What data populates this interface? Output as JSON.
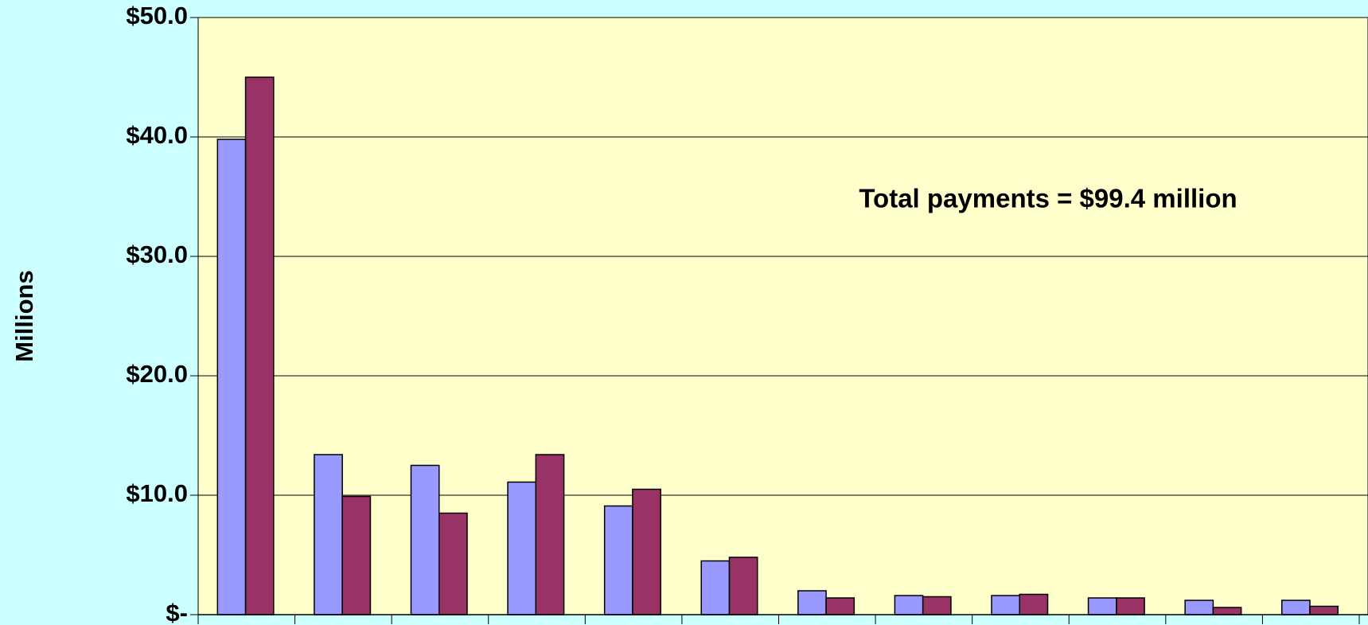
{
  "chart_data": {
    "type": "bar",
    "annotation": "Total payments = $99.4 million",
    "ylabel": "Millions",
    "categories": [
      null,
      null,
      null,
      null,
      null,
      null,
      null,
      null,
      null,
      null,
      null,
      null
    ],
    "series": [
      {
        "color": "#9999ff",
        "values": [
          39.8,
          13.4,
          12.5,
          11.1,
          9.1,
          4.5,
          2.0,
          1.6,
          1.6,
          1.4,
          1.2,
          1.2
        ]
      },
      {
        "color": "#993366",
        "values": [
          45.0,
          9.9,
          8.5,
          13.4,
          10.5,
          4.8,
          1.4,
          1.5,
          1.7,
          1.4,
          0.6,
          0.7
        ]
      }
    ],
    "ylim": [
      0,
      50
    ],
    "yticks": [
      {
        "value": 0,
        "label": "$-"
      },
      {
        "value": 10,
        "label": "$10.0"
      },
      {
        "value": 20,
        "label": "$20.0"
      },
      {
        "value": 30,
        "label": "$30.0"
      },
      {
        "value": 40,
        "label": "$40.0"
      },
      {
        "value": 50,
        "label": "$50.0"
      }
    ],
    "grid": true,
    "plot_background": "#ffffcc"
  }
}
